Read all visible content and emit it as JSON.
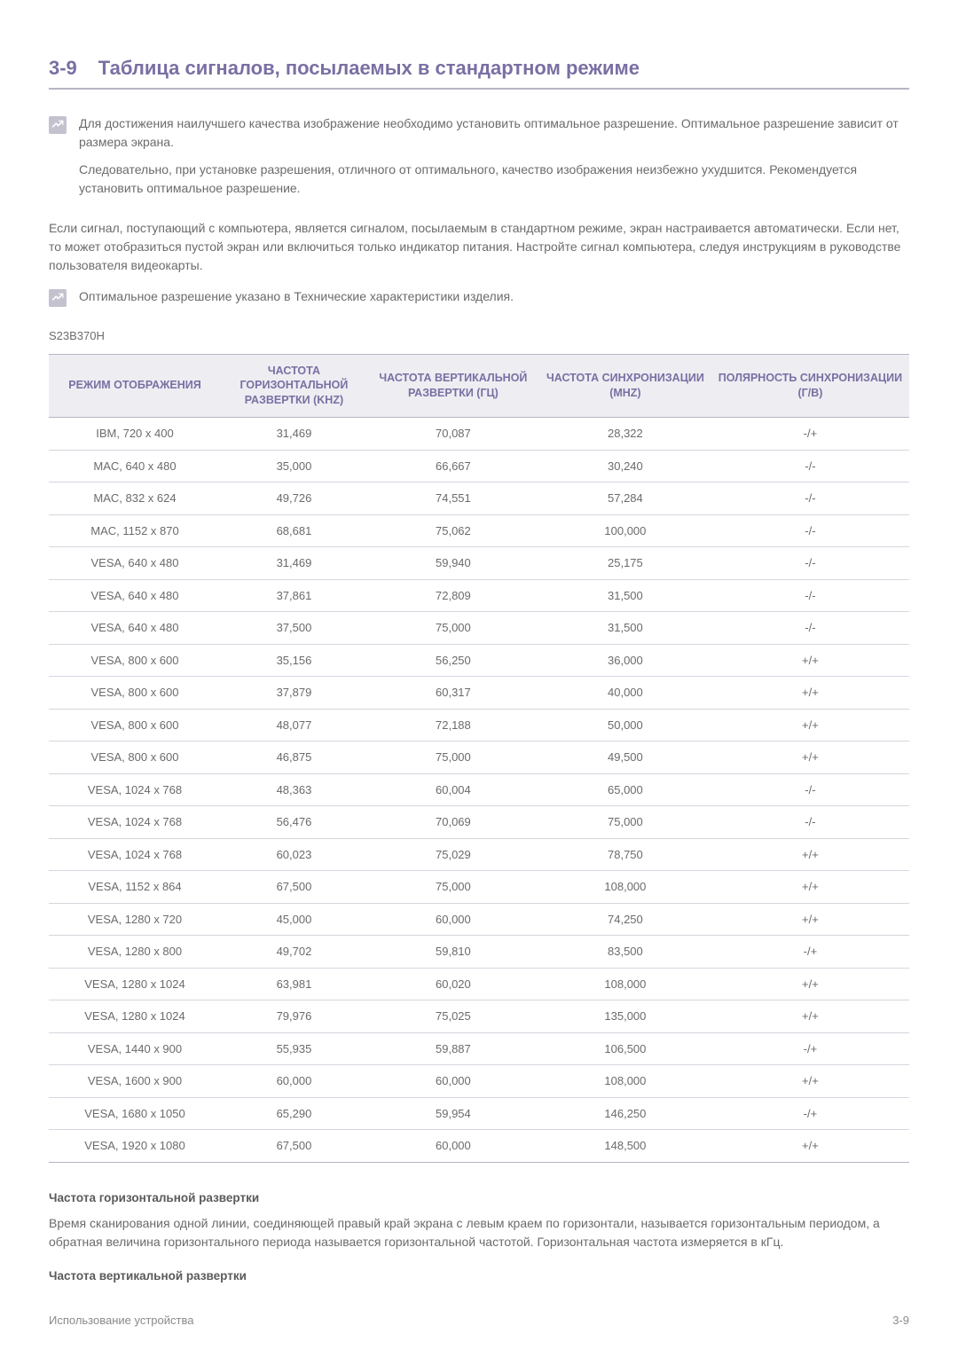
{
  "section": {
    "num": "3-9",
    "title": "Таблица сигналов, посылаемых в стандартном режиме"
  },
  "note1": {
    "p1": "Для достижения наилучшего качества изображение необходимо установить оптимальное разрешение. Оптимальное разрешение зависит от размера экрана.",
    "p2": "Следовательно, при установке разрешения, отличного от оптимального, качество изображения неизбежно ухудшится. Рекомендуется установить оптимальное разрешение."
  },
  "para1": "Если сигнал, поступающий с компьютера, является сигналом, посылаемым в стандартном режиме, экран настраивается автоматически. Если нет, то может отобразиться пустой экран или включиться только индикатор питания. Настройте сигнал компьютера, следуя инструкциям в руководстве пользователя видеокарты.",
  "note2": {
    "p1": "Оптимальное разрешение указано в Технические характеристики изделия."
  },
  "model": "S23B370H",
  "table": {
    "headers": [
      "РЕЖИМ ОТОБРАЖЕНИЯ",
      "ЧАСТОТА ГОРИЗОНТАЛЬНОЙ РАЗВЕРТКИ (KHZ)",
      "ЧАСТОТА ВЕРТИКАЛЬНОЙ РАЗВЕРТКИ (ГЦ)",
      "ЧАСТОТА СИНХРОНИЗАЦИИ (MHZ)",
      "ПОЛЯРНОСТЬ СИНХРОНИЗАЦИИ (Г/В)"
    ],
    "rows": [
      [
        "IBM, 720 x 400",
        "31,469",
        "70,087",
        "28,322",
        "-/+"
      ],
      [
        "MAC, 640 x 480",
        "35,000",
        "66,667",
        "30,240",
        "-/-"
      ],
      [
        "MAC, 832 x 624",
        "49,726",
        "74,551",
        "57,284",
        "-/-"
      ],
      [
        "MAC, 1152 x 870",
        "68,681",
        "75,062",
        "100,000",
        "-/-"
      ],
      [
        "VESA, 640 x 480",
        "31,469",
        "59,940",
        "25,175",
        "-/-"
      ],
      [
        "VESA, 640 x 480",
        "37,861",
        "72,809",
        "31,500",
        "-/-"
      ],
      [
        "VESA, 640 x 480",
        "37,500",
        "75,000",
        "31,500",
        "-/-"
      ],
      [
        "VESA, 800 x 600",
        "35,156",
        "56,250",
        "36,000",
        "+/+"
      ],
      [
        "VESA, 800 x 600",
        "37,879",
        "60,317",
        "40,000",
        "+/+"
      ],
      [
        "VESA, 800 x 600",
        "48,077",
        "72,188",
        "50,000",
        "+/+"
      ],
      [
        "VESA, 800 x 600",
        "46,875",
        "75,000",
        "49,500",
        "+/+"
      ],
      [
        "VESA, 1024 x 768",
        "48,363",
        "60,004",
        "65,000",
        "-/-"
      ],
      [
        "VESA, 1024 x 768",
        "56,476",
        "70,069",
        "75,000",
        "-/-"
      ],
      [
        "VESA, 1024 x 768",
        "60,023",
        "75,029",
        "78,750",
        "+/+"
      ],
      [
        "VESA, 1152 x 864",
        "67,500",
        "75,000",
        "108,000",
        "+/+"
      ],
      [
        "VESA, 1280 x 720",
        "45,000",
        "60,000",
        "74,250",
        "+/+"
      ],
      [
        "VESA, 1280 x 800",
        "49,702",
        "59,810",
        "83,500",
        "-/+"
      ],
      [
        "VESA, 1280 x 1024",
        "63,981",
        "60,020",
        "108,000",
        "+/+"
      ],
      [
        "VESA, 1280 x 1024",
        "79,976",
        "75,025",
        "135,000",
        "+/+"
      ],
      [
        "VESA, 1440 x 900",
        "55,935",
        "59,887",
        "106,500",
        "-/+"
      ],
      [
        "VESA, 1600 x 900",
        "60,000",
        "60,000",
        "108,000",
        "+/+"
      ],
      [
        "VESA, 1680 x 1050",
        "65,290",
        "59,954",
        "146,250",
        "-/+"
      ],
      [
        "VESA, 1920 x 1080",
        "67,500",
        "60,000",
        "148,500",
        "+/+"
      ]
    ]
  },
  "hfreq": {
    "heading": "Частота горизонтальной развертки",
    "text": "Время сканирования одной линии, соединяющей правый край экрана с левым краем по горизонтали, называется горизонтальным периодом, а обратная величина горизонтального периода называется горизонтальной частотой. Горизонтальная частота измеряется в кГц."
  },
  "vfreq": {
    "heading": "Частота вертикальной развертки"
  },
  "footer": {
    "left": "Использование устройства",
    "right": "3-9"
  }
}
